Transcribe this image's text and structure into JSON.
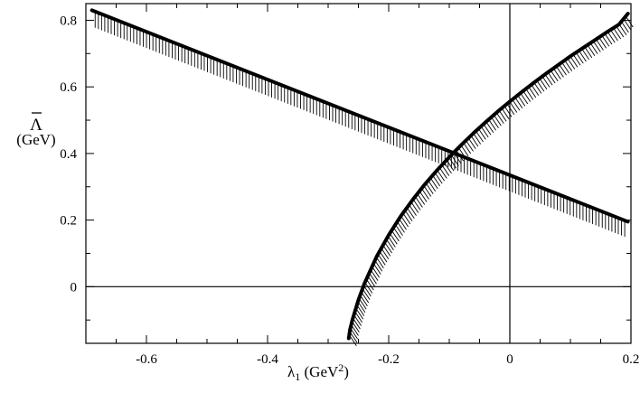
{
  "chart_data": {
    "type": "line",
    "title": "",
    "xlabel": {
      "prefix": "λ",
      "sub": "1",
      "unit_open": " (GeV",
      "unit_sup": "2",
      "unit_close": ")"
    },
    "ylabel": {
      "symbol": "Λ",
      "unit": "(GeV)"
    },
    "xlim": [
      -0.7,
      0.2
    ],
    "ylim": [
      -0.17,
      0.85
    ],
    "xticks": [
      -0.6,
      -0.4,
      -0.2,
      0,
      0.2
    ],
    "xtick_labels": [
      "-0.6",
      "-0.4",
      "-0.2",
      "0",
      "0.2"
    ],
    "yticks": [
      0,
      0.2,
      0.4,
      0.6,
      0.8
    ],
    "ytick_labels": [
      "0",
      "0.2",
      "0.4",
      "0.6",
      "0.8"
    ],
    "reference_lines": {
      "x": 0,
      "y": 0
    },
    "grid": false,
    "legend": "none",
    "series": [
      {
        "x": [
          -0.69,
          0.195
        ],
        "y": [
          0.83,
          0.195
        ],
        "hatch_side": "below"
      },
      {
        "x": [
          -0.266,
          -0.264,
          -0.26,
          -0.25,
          -0.24,
          -0.22,
          -0.2,
          -0.18,
          -0.16,
          -0.14,
          -0.12,
          -0.1,
          -0.08,
          -0.06,
          -0.04,
          -0.02,
          0,
          0.02,
          0.04,
          0.06,
          0.08,
          0.1,
          0.12,
          0.14,
          0.16,
          0.18,
          0.195
        ],
        "y": [
          -0.155,
          -0.13,
          -0.1,
          -0.04,
          0.01,
          0.09,
          0.155,
          0.212,
          0.262,
          0.308,
          0.35,
          0.389,
          0.426,
          0.461,
          0.494,
          0.526,
          0.556,
          0.585,
          0.613,
          0.64,
          0.666,
          0.692,
          0.716,
          0.74,
          0.764,
          0.787,
          0.82
        ],
        "hatch_side": "right"
      }
    ]
  }
}
